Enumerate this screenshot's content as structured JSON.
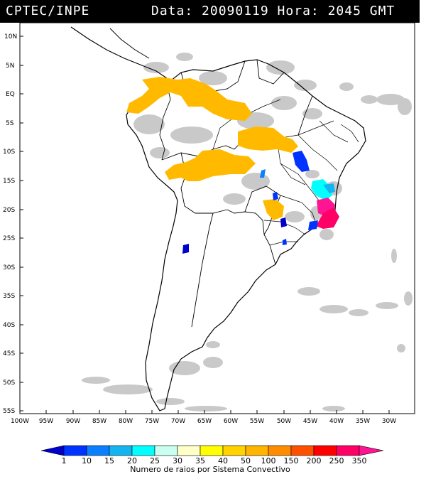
{
  "header": {
    "agency": "CPTEC/INPE",
    "datetime": "Data: 20090119 Hora: 2045 GMT"
  },
  "map": {
    "lon_labels": [
      "100W",
      "95W",
      "90W",
      "85W",
      "80W",
      "75W",
      "70W",
      "65W",
      "60W",
      "55W",
      "50W",
      "45W",
      "40W",
      "35W",
      "30W"
    ],
    "lat_labels": [
      "10N",
      "5N",
      "EQ",
      "5S",
      "10S",
      "15S",
      "20S",
      "25S",
      "30S",
      "35S",
      "40S",
      "45S",
      "50S",
      "55S"
    ]
  },
  "legend": {
    "values": [
      "1",
      "10",
      "15",
      "20",
      "25",
      "30",
      "35",
      "40",
      "50",
      "100",
      "150",
      "200",
      "250",
      "350"
    ],
    "colors": [
      "#0000cc",
      "#0033ff",
      "#0a7fff",
      "#14b4f0",
      "#00ffff",
      "#c8fff0",
      "#ffffc8",
      "#ffff00",
      "#ffd200",
      "#ffb400",
      "#ff8c00",
      "#ff5000",
      "#ff0000",
      "#ff0066",
      "#ff1493"
    ],
    "caption": "Numero de raios por Sistema Convectivo"
  }
}
